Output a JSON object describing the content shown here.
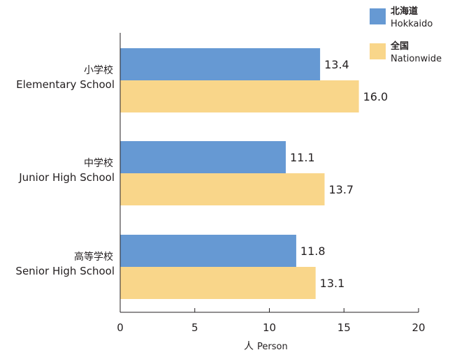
{
  "chart_data": {
    "type": "bar",
    "orientation": "horizontal",
    "categories": [
      {
        "ja": "小学校",
        "en": "Elementary School"
      },
      {
        "ja": "中学校",
        "en": "Junior High School"
      },
      {
        "ja": "高等学校",
        "en": "Senior High School"
      }
    ],
    "series": [
      {
        "name_ja": "北海道",
        "name_en": "Hokkaido",
        "color": "#6699d3",
        "values": [
          13.4,
          11.1,
          11.8
        ]
      },
      {
        "name_ja": "全国",
        "name_en": "Nationwide",
        "color": "#f9d68a",
        "values": [
          16.0,
          13.7,
          13.1
        ]
      }
    ],
    "value_labels": [
      [
        "13.4",
        "11.1",
        "11.8"
      ],
      [
        "16.0",
        "13.7",
        "13.1"
      ]
    ],
    "xlabel_ja": "人",
    "xlabel_en": "Person",
    "xlim": [
      0,
      20
    ],
    "xticks": [
      0,
      5,
      10,
      15,
      20
    ],
    "legend_position": "top-right",
    "grid": false
  }
}
